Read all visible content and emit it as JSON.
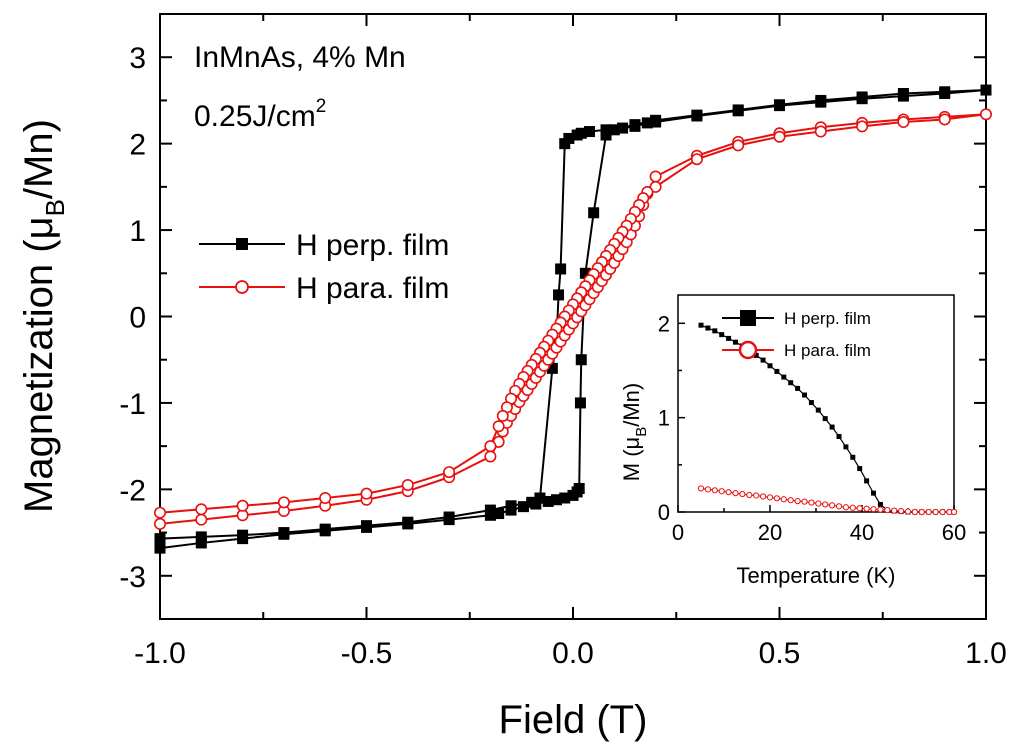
{
  "annotation": {
    "line1": "InMnAs, 4% Mn",
    "line2_base": "0.25J/cm",
    "line2_sup": "2"
  },
  "colors": {
    "perp": "#000000",
    "para": "#e8100f"
  },
  "chart_data": [
    {
      "type": "line",
      "title": "",
      "xlabel": "Field (T)",
      "ylabel": "Magnetization (μB/Mn)",
      "ylabel_parts": {
        "pre": "Magnetization (",
        "mu": "μ",
        "sub": "B",
        "post": "/Mn)"
      },
      "xlim": [
        -1.0,
        1.0
      ],
      "ylim": [
        -3.5,
        3.5
      ],
      "xticks": [
        -1.0,
        -0.5,
        0.0,
        0.5,
        1.0
      ],
      "xtick_labels": [
        "-1.0",
        "-0.5",
        "0.0",
        "0.5",
        "1.0"
      ],
      "yticks": [
        -3,
        -2,
        -1,
        0,
        1,
        2,
        3
      ],
      "ytick_labels": [
        "-3",
        "-2",
        "-1",
        "0",
        "1",
        "2",
        "3"
      ],
      "grid": false,
      "legend_position": "middle-left",
      "series": [
        {
          "name": "H perp. film",
          "color": "#000000",
          "marker": "filled-square",
          "x": [
            -1.0,
            -0.9,
            -0.8,
            -0.7,
            -0.6,
            -0.5,
            -0.4,
            -0.3,
            -0.2,
            -0.18,
            -0.15,
            -0.12,
            -0.09,
            -0.06,
            -0.04,
            -0.02,
            0.0,
            0.01,
            0.015,
            0.018,
            0.02,
            0.03,
            0.05,
            0.08,
            0.1,
            0.15,
            0.2,
            0.3,
            0.4,
            0.5,
            0.6,
            0.7,
            0.8,
            0.9,
            1.0,
            0.9,
            0.8,
            0.7,
            0.6,
            0.5,
            0.4,
            0.3,
            0.2,
            0.18,
            0.15,
            0.12,
            0.08,
            0.04,
            0.02,
            0.01,
            -0.01,
            -0.02,
            -0.03,
            -0.035,
            -0.04,
            -0.05,
            -0.08,
            -0.1,
            -0.15,
            -0.2,
            -0.3,
            -0.4,
            -0.5,
            -0.6,
            -0.7,
            -0.8,
            -0.9,
            -1.0
          ],
          "y": [
            -2.68,
            -2.62,
            -2.57,
            -2.52,
            -2.48,
            -2.44,
            -2.4,
            -2.35,
            -2.3,
            -2.28,
            -2.24,
            -2.2,
            -2.17,
            -2.14,
            -2.12,
            -2.1,
            -2.07,
            -2.03,
            -1.99,
            -1.0,
            -0.5,
            0.5,
            1.2,
            2.1,
            2.16,
            2.22,
            2.27,
            2.33,
            2.39,
            2.45,
            2.5,
            2.54,
            2.58,
            2.6,
            2.62,
            2.58,
            2.55,
            2.52,
            2.48,
            2.44,
            2.38,
            2.32,
            2.25,
            2.24,
            2.2,
            2.18,
            2.16,
            2.14,
            2.12,
            2.1,
            2.06,
            2.0,
            0.55,
            0.25,
            -0.3,
            -0.6,
            -2.1,
            -2.15,
            -2.19,
            -2.24,
            -2.32,
            -2.38,
            -2.42,
            -2.46,
            -2.5,
            -2.53,
            -2.55,
            -2.57
          ]
        },
        {
          "name": "H para. film",
          "color": "#e8100f",
          "marker": "open-circle",
          "x": [
            -1.0,
            -0.9,
            -0.8,
            -0.7,
            -0.6,
            -0.5,
            -0.4,
            -0.3,
            -0.2,
            -0.18,
            -0.17,
            -0.16,
            -0.15,
            -0.14,
            -0.13,
            -0.12,
            -0.11,
            -0.1,
            -0.09,
            -0.08,
            -0.07,
            -0.06,
            -0.05,
            -0.04,
            -0.03,
            -0.02,
            -0.01,
            0.0,
            0.01,
            0.02,
            0.03,
            0.04,
            0.05,
            0.06,
            0.07,
            0.08,
            0.09,
            0.1,
            0.11,
            0.12,
            0.13,
            0.14,
            0.15,
            0.16,
            0.17,
            0.18,
            0.2,
            0.3,
            0.4,
            0.5,
            0.6,
            0.7,
            0.8,
            0.9,
            1.0,
            0.9,
            0.8,
            0.7,
            0.6,
            0.5,
            0.4,
            0.3,
            0.2,
            0.18,
            0.17,
            0.16,
            0.15,
            0.14,
            0.13,
            0.12,
            0.11,
            0.1,
            0.09,
            0.08,
            0.07,
            0.06,
            0.05,
            0.04,
            0.03,
            0.02,
            0.01,
            0.0,
            -0.01,
            -0.02,
            -0.03,
            -0.04,
            -0.05,
            -0.06,
            -0.07,
            -0.08,
            -0.09,
            -0.1,
            -0.11,
            -0.12,
            -0.13,
            -0.14,
            -0.15,
            -0.16,
            -0.17,
            -0.18,
            -0.2,
            -0.3,
            -0.4,
            -0.5,
            -0.6,
            -0.7,
            -0.8,
            -0.9,
            -1.0
          ],
          "y": [
            -2.4,
            -2.35,
            -2.3,
            -2.25,
            -2.19,
            -2.12,
            -2.02,
            -1.86,
            -1.62,
            -1.45,
            -1.33,
            -1.23,
            -1.15,
            -1.07,
            -0.99,
            -0.92,
            -0.85,
            -0.78,
            -0.71,
            -0.64,
            -0.57,
            -0.5,
            -0.43,
            -0.36,
            -0.29,
            -0.22,
            -0.15,
            -0.08,
            -0.01,
            0.06,
            0.13,
            0.2,
            0.27,
            0.34,
            0.41,
            0.48,
            0.55,
            0.62,
            0.7,
            0.78,
            0.86,
            0.95,
            1.05,
            1.16,
            1.29,
            1.42,
            1.62,
            1.86,
            2.02,
            2.12,
            2.19,
            2.24,
            2.28,
            2.31,
            2.34,
            2.28,
            2.25,
            2.2,
            2.14,
            2.08,
            1.98,
            1.82,
            1.5,
            1.44,
            1.37,
            1.29,
            1.21,
            1.13,
            1.05,
            0.98,
            0.91,
            0.84,
            0.77,
            0.7,
            0.63,
            0.56,
            0.49,
            0.42,
            0.35,
            0.28,
            0.21,
            0.14,
            0.07,
            0.0,
            -0.07,
            -0.14,
            -0.21,
            -0.28,
            -0.35,
            -0.42,
            -0.49,
            -0.56,
            -0.63,
            -0.7,
            -0.78,
            -0.86,
            -0.95,
            -1.05,
            -1.15,
            -1.27,
            -1.5,
            -1.8,
            -1.95,
            -2.05,
            -2.1,
            -2.15,
            -2.19,
            -2.23,
            -2.27
          ]
        }
      ]
    },
    {
      "type": "line",
      "title": "",
      "xlabel": "Temperature (K)",
      "ylabel": "M (μB/Mn)",
      "ylabel_parts": {
        "pre": "M (",
        "mu": "μ",
        "sub": "B",
        "post": "/Mn)"
      },
      "xlim": [
        0,
        60
      ],
      "ylim": [
        0,
        2.3
      ],
      "xticks": [
        0,
        20,
        40,
        60
      ],
      "xtick_labels": [
        "0",
        "20",
        "40",
        "60"
      ],
      "yticks": [
        0,
        1,
        2
      ],
      "ytick_labels": [
        "0",
        "1",
        "2"
      ],
      "grid": false,
      "legend_position": "top-right",
      "series": [
        {
          "name": "H perp. film",
          "color": "#000000",
          "marker": "filled-square",
          "x": [
            5,
            6.5,
            8,
            9.5,
            11,
            12.5,
            14,
            15.5,
            17,
            18.5,
            20,
            21.5,
            23,
            24.5,
            26,
            27.5,
            29,
            30.5,
            32,
            33.5,
            35,
            36.5,
            38,
            39.5,
            41,
            42.5,
            44,
            45.5,
            47,
            48.5,
            50,
            51.5,
            53,
            54.5,
            56,
            57.5,
            59,
            60
          ],
          "y": [
            1.98,
            1.95,
            1.92,
            1.88,
            1.84,
            1.8,
            1.76,
            1.71,
            1.66,
            1.61,
            1.55,
            1.49,
            1.43,
            1.37,
            1.31,
            1.24,
            1.16,
            1.08,
            0.99,
            0.9,
            0.8,
            0.69,
            0.58,
            0.46,
            0.33,
            0.2,
            0.08,
            0.02,
            0.01,
            0.005,
            0.0,
            0.0,
            0.0,
            0.0,
            0.0,
            0.0,
            0.0,
            0.0
          ]
        },
        {
          "name": "H para. film",
          "color": "#e8100f",
          "marker": "open-circle",
          "x": [
            5,
            6.5,
            8,
            9.5,
            11,
            12.5,
            14,
            15.5,
            17,
            18.5,
            20,
            21.5,
            23,
            24.5,
            26,
            27.5,
            29,
            30.5,
            32,
            33.5,
            35,
            36.5,
            38,
            39.5,
            41,
            42.5,
            44,
            45.5,
            47,
            48.5,
            50,
            51.5,
            53,
            54.5,
            56,
            57.5,
            59,
            60
          ],
          "y": [
            0.25,
            0.24,
            0.23,
            0.22,
            0.21,
            0.2,
            0.19,
            0.18,
            0.175,
            0.165,
            0.155,
            0.145,
            0.135,
            0.125,
            0.115,
            0.11,
            0.1,
            0.09,
            0.08,
            0.07,
            0.06,
            0.05,
            0.045,
            0.04,
            0.035,
            0.03,
            0.025,
            0.02,
            0.015,
            0.01,
            0.005,
            0.0,
            0.0,
            0.0,
            0.0,
            0.0,
            0.0,
            0.0
          ]
        }
      ]
    }
  ]
}
